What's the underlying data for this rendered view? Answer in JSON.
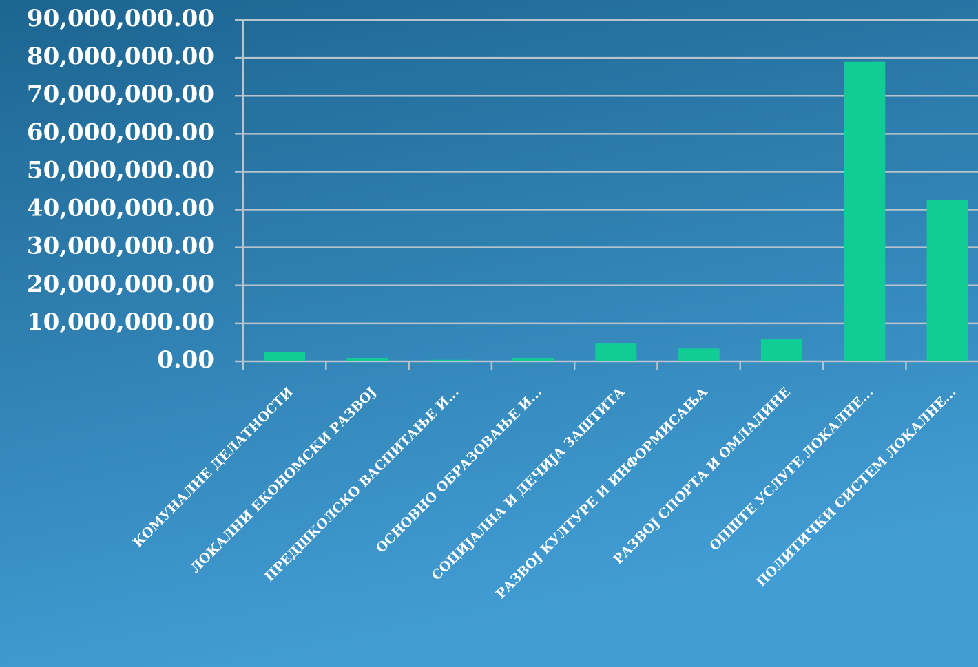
{
  "chart_data": {
    "type": "bar",
    "categories": [
      "КОМУНАЛНЕ ДЕЛАТНОСТИ",
      "ЛОКАЛНИ ЕКОНОМСКИ РАЗВОЈ",
      "ПРЕДШКОЛСКО ВАСПИТАЊЕ И...",
      "ОСНОВНО ОБРАЗОВАЊЕ И...",
      "СОЦИЈАЛНА И ДЕЧИЈА ЗАШТИТА",
      "РАЗВОЈ КУЛТУРЕ И ИНФОРМИСАЊА",
      "РАЗВОЈ СПОРТА И ОМЛАДИНЕ",
      "ОПШТЕ УСЛУГЕ ЛОКАЛНЕ...",
      "ПОЛИТИЧКИ СИСТЕМ ЛОКАЛНЕ..."
    ],
    "values": [
      2500000,
      900000,
      400000,
      900000,
      4700000,
      3400000,
      5800000,
      79000000,
      42600000
    ],
    "color": "#12cc96",
    "ylim": [
      0,
      90000000
    ],
    "yticks": [
      {
        "value": 0,
        "label": "0.00"
      },
      {
        "value": 10000000,
        "label": "10,000,000.00"
      },
      {
        "value": 20000000,
        "label": "20,000,000.00"
      },
      {
        "value": 30000000,
        "label": "30,000,000.00"
      },
      {
        "value": 40000000,
        "label": "40,000,000.00"
      },
      {
        "value": 50000000,
        "label": "50,000,000.00"
      },
      {
        "value": 60000000,
        "label": "60,000,000.00"
      },
      {
        "value": 70000000,
        "label": "70,000,000.00"
      },
      {
        "value": 80000000,
        "label": "80,000,000.00"
      },
      {
        "value": 90000000,
        "label": "90,000,000.00"
      }
    ],
    "grid": true
  }
}
